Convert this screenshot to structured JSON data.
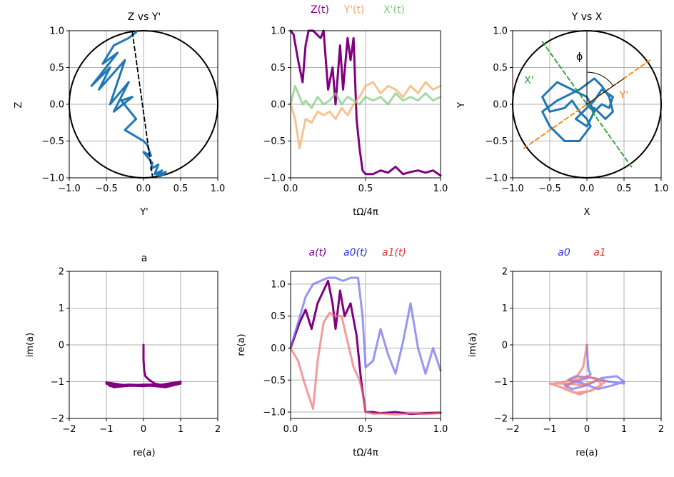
{
  "chart_data": [
    {
      "id": "p1",
      "type": "line",
      "title": "Z vs Y'",
      "xlabel": "Y'",
      "ylabel": "Z",
      "xlim": [
        -1,
        1
      ],
      "ylim": [
        -1,
        1
      ],
      "xticks": [
        "−1.0",
        "−0.5",
        "0.0",
        "0.5",
        "1.0"
      ],
      "yticks": [
        "−1.0",
        "−0.5",
        "0.0",
        "0.5",
        "1.0"
      ],
      "unit_circle": true,
      "series": [
        {
          "name": "trajectory",
          "color": "#1f77b4",
          "style": "solid",
          "x": [
            -0.1,
            -0.2,
            -0.4,
            -0.55,
            -0.35,
            -0.7,
            -0.45,
            -0.6,
            -0.25,
            -0.45,
            -0.2,
            -0.4,
            -0.15,
            -0.3,
            -0.1,
            -0.25,
            0.0,
            0.05,
            0.1,
            0.0,
            0.12,
            0.1,
            0.2,
            0.15,
            0.25,
            0.18,
            0.3,
            0.22,
            0.28
          ],
          "y": [
            0.98,
            0.9,
            0.8,
            0.55,
            0.7,
            0.25,
            0.5,
            0.2,
            0.6,
            0.0,
            0.3,
            -0.1,
            0.1,
            0.05,
            -0.2,
            -0.35,
            -0.5,
            -0.55,
            -0.7,
            -0.65,
            -0.8,
            -0.88,
            -0.82,
            -0.95,
            -0.9,
            -0.97,
            -0.92,
            -0.98,
            -0.95
          ]
        },
        {
          "name": "axis",
          "color": "#000000",
          "style": "dashed",
          "x": [
            -0.15,
            0.12
          ],
          "y": [
            0.98,
            -0.98
          ]
        }
      ]
    },
    {
      "id": "p2",
      "type": "line",
      "title": "",
      "xlabel": "tΩ/4π",
      "ylabel": "",
      "xlim": [
        0,
        1
      ],
      "ylim": [
        -1,
        1
      ],
      "xticks": [
        "0.0",
        "0.5",
        "1.0"
      ],
      "yticks": [
        "−1.0",
        "−0.5",
        "0.0",
        "0.5",
        "1.0"
      ],
      "legend": [
        "Z(t)",
        "Y'(t)",
        "X'(t)"
      ],
      "series": [
        {
          "name": "Z(t)",
          "color": "#800080",
          "x": [
            0,
            0.02,
            0.05,
            0.08,
            0.1,
            0.12,
            0.15,
            0.2,
            0.22,
            0.25,
            0.28,
            0.3,
            0.33,
            0.35,
            0.38,
            0.4,
            0.42,
            0.44,
            0.46,
            0.48,
            0.5,
            0.55,
            0.6,
            0.65,
            0.7,
            0.75,
            0.8,
            0.85,
            0.9,
            0.95,
            1.0
          ],
          "y": [
            1.0,
            0.95,
            0.6,
            0.3,
            0.8,
            1.0,
            1.0,
            0.9,
            1.0,
            0.2,
            0.5,
            0.0,
            0.8,
            0.2,
            0.9,
            0.6,
            0.9,
            -0.2,
            -0.6,
            -0.9,
            -0.95,
            -0.95,
            -0.9,
            -0.93,
            -0.85,
            -0.95,
            -0.92,
            -0.9,
            -0.93,
            -0.9,
            -0.97
          ]
        },
        {
          "name": "Y'(t)",
          "color": "#f5a962",
          "x": [
            0,
            0.03,
            0.06,
            0.08,
            0.1,
            0.14,
            0.18,
            0.22,
            0.26,
            0.3,
            0.34,
            0.38,
            0.42,
            0.46,
            0.5,
            0.55,
            0.6,
            0.65,
            0.7,
            0.75,
            0.8,
            0.85,
            0.9,
            0.95,
            1.0
          ],
          "y": [
            0.0,
            -0.2,
            -0.6,
            -0.4,
            -0.2,
            -0.25,
            -0.1,
            -0.15,
            -0.1,
            -0.2,
            -0.05,
            -0.15,
            0.0,
            0.1,
            0.25,
            0.3,
            0.15,
            0.25,
            0.2,
            0.1,
            0.25,
            0.15,
            0.3,
            0.2,
            0.25
          ]
        },
        {
          "name": "X'(t)",
          "color": "#7fc97f",
          "x": [
            0,
            0.03,
            0.06,
            0.08,
            0.1,
            0.14,
            0.18,
            0.22,
            0.26,
            0.3,
            0.34,
            0.38,
            0.42,
            0.46,
            0.5,
            0.55,
            0.6,
            0.65,
            0.7,
            0.75,
            0.8,
            0.85,
            0.9,
            0.95,
            1.0
          ],
          "y": [
            0.0,
            0.25,
            0.1,
            0.0,
            0.05,
            -0.05,
            0.1,
            0.0,
            0.05,
            0.15,
            0.0,
            0.1,
            0.05,
            0.0,
            0.1,
            0.05,
            0.1,
            0.0,
            0.15,
            0.05,
            0.1,
            0.05,
            0.15,
            0.05,
            0.1
          ]
        }
      ]
    },
    {
      "id": "p3",
      "type": "line",
      "title": "Y vs X",
      "xlabel": "X",
      "ylabel": "Y",
      "xlim": [
        -1,
        1
      ],
      "ylim": [
        -1,
        1
      ],
      "xticks": [
        "−1.0",
        "−0.5",
        "0.0",
        "0.5",
        "1.0"
      ],
      "yticks": [
        "−1.0",
        "−0.5",
        "0.0",
        "0.5",
        "1.0"
      ],
      "unit_circle": true,
      "annotations": [
        {
          "text": "ϕ",
          "x": -0.1,
          "y": 0.6,
          "color": "#000000"
        },
        {
          "text": "X'",
          "x": -0.78,
          "y": 0.28,
          "color": "#2ca02c"
        },
        {
          "text": "Y'",
          "x": 0.5,
          "y": 0.08,
          "color": "#ff7f0e"
        }
      ],
      "series": [
        {
          "name": "trajectory",
          "color": "#1f77b4",
          "style": "solid",
          "x": [
            0,
            0.1,
            0.2,
            0.3,
            0.35,
            0.2,
            0.1,
            -0.05,
            -0.15,
            0.0,
            0.1,
            0.0,
            -0.2,
            -0.4,
            -0.6,
            -0.5,
            -0.3,
            -0.2,
            -0.1,
            0.0,
            0.05,
            -0.1,
            -0.3,
            -0.5,
            -0.6,
            -0.4,
            -0.1,
            0.1,
            0.2,
            0.3,
            0.35,
            0.25,
            0.1
          ],
          "y": [
            0.0,
            -0.1,
            0.0,
            -0.05,
            0.1,
            0.2,
            0.05,
            -0.1,
            -0.2,
            -0.3,
            -0.1,
            0.1,
            0.2,
            0.3,
            0.1,
            -0.1,
            -0.05,
            0.05,
            -0.1,
            -0.2,
            -0.3,
            -0.5,
            -0.5,
            -0.3,
            -0.1,
            0.05,
            0.2,
            0.35,
            0.25,
            0.1,
            -0.1,
            -0.2,
            -0.05
          ]
        },
        {
          "name": "Y' axis",
          "color": "#ff7f0e",
          "style": "dashed",
          "x": [
            -0.85,
            0.85
          ],
          "y": [
            -0.6,
            0.6
          ]
        },
        {
          "name": "X' axis",
          "color": "#2ca02c",
          "style": "dashed",
          "x": [
            -0.6,
            0.6
          ],
          "y": [
            0.85,
            -0.85
          ]
        },
        {
          "name": "z axis",
          "color": "#000000",
          "style": "solid",
          "x": [
            0,
            0
          ],
          "y": [
            0,
            1
          ]
        },
        {
          "name": "projection",
          "color": "#000000",
          "style": "solid",
          "x": [
            0,
            0.5
          ],
          "y": [
            0,
            0.35
          ]
        }
      ]
    },
    {
      "id": "p4",
      "type": "line",
      "title": "a",
      "xlabel": "re(a)",
      "ylabel": "im(a)",
      "xlim": [
        -2,
        2
      ],
      "ylim": [
        -2,
        2
      ],
      "xticks": [
        "−2",
        "−1",
        "0",
        "1",
        "2"
      ],
      "yticks": [
        "−2",
        "−1",
        "0",
        "1",
        "2"
      ],
      "series": [
        {
          "name": "a",
          "color": "#800080",
          "x": [
            0.0,
            0.0,
            0.02,
            0.05,
            0.15,
            0.3,
            0.5,
            0.8,
            1.0,
            0.5,
            0.0,
            -0.5,
            -1.0,
            -0.8,
            -0.3,
            0.2,
            0.7,
            1.0,
            0.6,
            0.1,
            -0.4,
            -0.9,
            -1.0,
            -0.5,
            0.0,
            0.5,
            1.0
          ],
          "y": [
            0.0,
            -0.4,
            -0.7,
            -0.85,
            -0.95,
            -1.05,
            -1.1,
            -1.05,
            -1.0,
            -1.1,
            -1.08,
            -1.12,
            -1.05,
            -1.15,
            -1.1,
            -1.08,
            -1.12,
            -1.05,
            -1.15,
            -1.1,
            -1.08,
            -1.12,
            -1.02,
            -1.1,
            -1.12,
            -1.08,
            -1.0
          ]
        }
      ]
    },
    {
      "id": "p5",
      "type": "line",
      "title": "",
      "xlabel": "tΩ/4π",
      "ylabel": "re(a)",
      "xlim": [
        0,
        1
      ],
      "ylim": [
        -1.1,
        1.2
      ],
      "xticks": [
        "0.0",
        "0.5",
        "1.0"
      ],
      "yticks": [
        "−1.0",
        "−0.5",
        "0.0",
        "0.5",
        "1.0"
      ],
      "legend": [
        "a(t)",
        "a0(t)",
        "a1(t)"
      ],
      "series": [
        {
          "name": "a(t)",
          "color": "#800080",
          "x": [
            0,
            0.03,
            0.06,
            0.1,
            0.14,
            0.18,
            0.22,
            0.25,
            0.28,
            0.3,
            0.33,
            0.36,
            0.4,
            0.44,
            0.47,
            0.5,
            0.55,
            0.6,
            0.7,
            0.8,
            0.9,
            1.0
          ],
          "y": [
            0.0,
            0.2,
            0.4,
            0.6,
            0.3,
            0.7,
            0.9,
            1.05,
            0.7,
            0.3,
            0.9,
            0.5,
            0.7,
            0.2,
            -0.5,
            -1.0,
            -1.0,
            -1.02,
            -1.0,
            -1.03,
            -1.02,
            -1.01
          ]
        },
        {
          "name": "a0(t)",
          "color": "#6a6af0",
          "x": [
            0,
            0.05,
            0.1,
            0.15,
            0.2,
            0.25,
            0.3,
            0.35,
            0.4,
            0.45,
            0.48,
            0.5,
            0.55,
            0.6,
            0.65,
            0.7,
            0.75,
            0.8,
            0.85,
            0.9,
            0.95,
            1.0
          ],
          "y": [
            0.0,
            0.4,
            0.8,
            1.0,
            1.05,
            1.1,
            1.1,
            1.05,
            1.1,
            1.1,
            0.5,
            -0.3,
            -0.2,
            0.3,
            -0.1,
            -0.4,
            0.1,
            0.7,
            0.0,
            -0.4,
            0.0,
            -0.35
          ]
        },
        {
          "name": "a1(t)",
          "color": "#f07070",
          "x": [
            0,
            0.05,
            0.1,
            0.15,
            0.18,
            0.22,
            0.26,
            0.3,
            0.34,
            0.38,
            0.42,
            0.46,
            0.48,
            0.5,
            0.55,
            0.6,
            0.7,
            0.8,
            0.9,
            1.0
          ],
          "y": [
            0.0,
            -0.2,
            -0.6,
            -0.95,
            -0.2,
            0.4,
            0.55,
            0.5,
            0.5,
            0.1,
            -0.3,
            -0.5,
            -0.7,
            -1.0,
            -1.03,
            -1.02,
            -1.04,
            -1.02,
            -1.03,
            -1.02
          ]
        }
      ]
    },
    {
      "id": "p6",
      "type": "line",
      "title": "",
      "xlabel": "re(a)",
      "ylabel": "im(a)",
      "xlim": [
        -2,
        2
      ],
      "ylim": [
        -2,
        2
      ],
      "xticks": [
        "−2",
        "−1",
        "0",
        "1",
        "2"
      ],
      "yticks": [
        "−2",
        "−1",
        "0",
        "1",
        "2"
      ],
      "legend": [
        "a0",
        "a1"
      ],
      "series": [
        {
          "name": "a0",
          "color": "#6a6af0",
          "x": [
            0.0,
            0.02,
            0.05,
            0.1,
            0.0,
            -0.3,
            -0.6,
            -0.4,
            0.0,
            0.4,
            0.8,
            1.0,
            0.7,
            0.3,
            -0.1,
            -0.5,
            -0.3,
            0.2,
            0.6,
            1.0
          ],
          "y": [
            0.0,
            -0.4,
            -0.7,
            -0.8,
            -0.9,
            -1.0,
            -1.1,
            -1.2,
            -1.1,
            -0.9,
            -0.85,
            -1.0,
            -1.1,
            -1.2,
            -1.05,
            -0.95,
            -0.85,
            -0.9,
            -1.0,
            -1.05
          ]
        },
        {
          "name": "a1",
          "color": "#f07070",
          "x": [
            0.0,
            -0.1,
            -0.3,
            -0.6,
            -0.9,
            -1.0,
            -0.7,
            -0.3,
            0.1,
            0.4,
            0.3,
            0.0,
            -0.4,
            -0.6,
            -0.2,
            0.2,
            0.5,
            0.3,
            -0.1,
            -0.5,
            -1.0
          ],
          "y": [
            0.0,
            -0.6,
            -0.9,
            -1.0,
            -1.05,
            -1.05,
            -1.15,
            -1.3,
            -1.25,
            -1.1,
            -0.95,
            -0.85,
            -1.0,
            -1.2,
            -1.35,
            -1.2,
            -1.0,
            -0.95,
            -1.1,
            -1.05,
            -1.05
          ]
        }
      ]
    }
  ]
}
